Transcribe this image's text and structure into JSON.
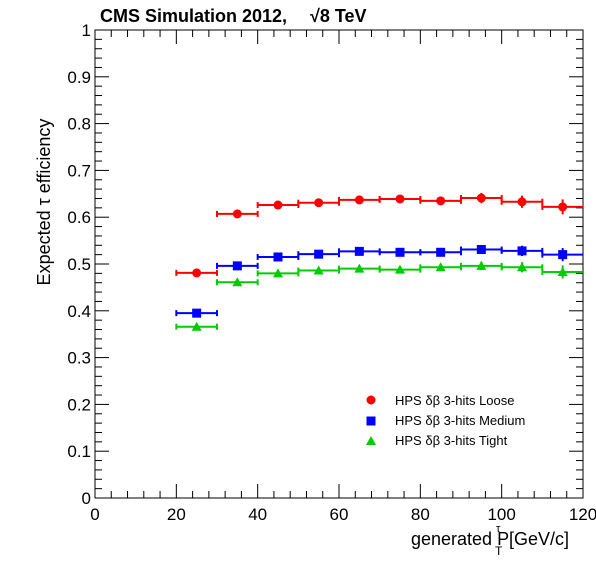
{
  "chart_data": {
    "type": "scatter",
    "title": "CMS Simulation 2012,",
    "title_energy": "√8 TeV",
    "xlabel": "generated P",
    "xlabel_sub": "T",
    "xlabel_sup": "τ",
    "xlabel_unit": "[GeV/c]",
    "ylabel": "Expected τ efficiency",
    "xlim": [
      0,
      120
    ],
    "ylim": [
      0,
      1
    ],
    "xticks": [
      0,
      20,
      40,
      60,
      80,
      100,
      120
    ],
    "yticks": [
      0,
      0.1,
      0.2,
      0.3,
      0.4,
      0.5,
      0.6,
      0.7,
      0.8,
      0.9,
      1
    ],
    "legend_position": "bottom-right",
    "series": [
      {
        "name": "HPS  δβ 3-hits Loose",
        "color": "#ff0000",
        "marker": "circle",
        "x": [
          25,
          35,
          45,
          55,
          65,
          75,
          85,
          95,
          105,
          115
        ],
        "xerr": [
          5,
          5,
          5,
          5,
          5,
          5,
          5,
          5,
          5,
          5
        ],
        "y": [
          0.481,
          0.607,
          0.626,
          0.631,
          0.637,
          0.639,
          0.635,
          0.641,
          0.633,
          0.622
        ],
        "yerr": [
          0.004,
          0.004,
          0.004,
          0.005,
          0.005,
          0.006,
          0.007,
          0.011,
          0.013,
          0.016
        ]
      },
      {
        "name": "HPS  δβ 3-hits Medium",
        "color": "#0000ff",
        "marker": "square",
        "x": [
          25,
          35,
          45,
          55,
          65,
          75,
          85,
          95,
          105,
          115
        ],
        "xerr": [
          5,
          5,
          5,
          5,
          5,
          5,
          5,
          5,
          5,
          5
        ],
        "y": [
          0.395,
          0.496,
          0.515,
          0.521,
          0.527,
          0.525,
          0.525,
          0.531,
          0.528,
          0.52
        ],
        "yerr": [
          0.004,
          0.004,
          0.004,
          0.005,
          0.005,
          0.006,
          0.007,
          0.008,
          0.011,
          0.014
        ]
      },
      {
        "name": "HPS  δβ 3-hits Tight",
        "color": "#00cc00",
        "marker": "triangle",
        "x": [
          25,
          35,
          45,
          55,
          65,
          75,
          85,
          95,
          105,
          115
        ],
        "xerr": [
          5,
          5,
          5,
          5,
          5,
          5,
          5,
          5,
          5,
          5
        ],
        "y": [
          0.366,
          0.461,
          0.48,
          0.486,
          0.49,
          0.488,
          0.493,
          0.496,
          0.493,
          0.483
        ],
        "yerr": [
          0.004,
          0.004,
          0.004,
          0.005,
          0.005,
          0.006,
          0.007,
          0.009,
          0.011,
          0.014
        ]
      }
    ]
  }
}
